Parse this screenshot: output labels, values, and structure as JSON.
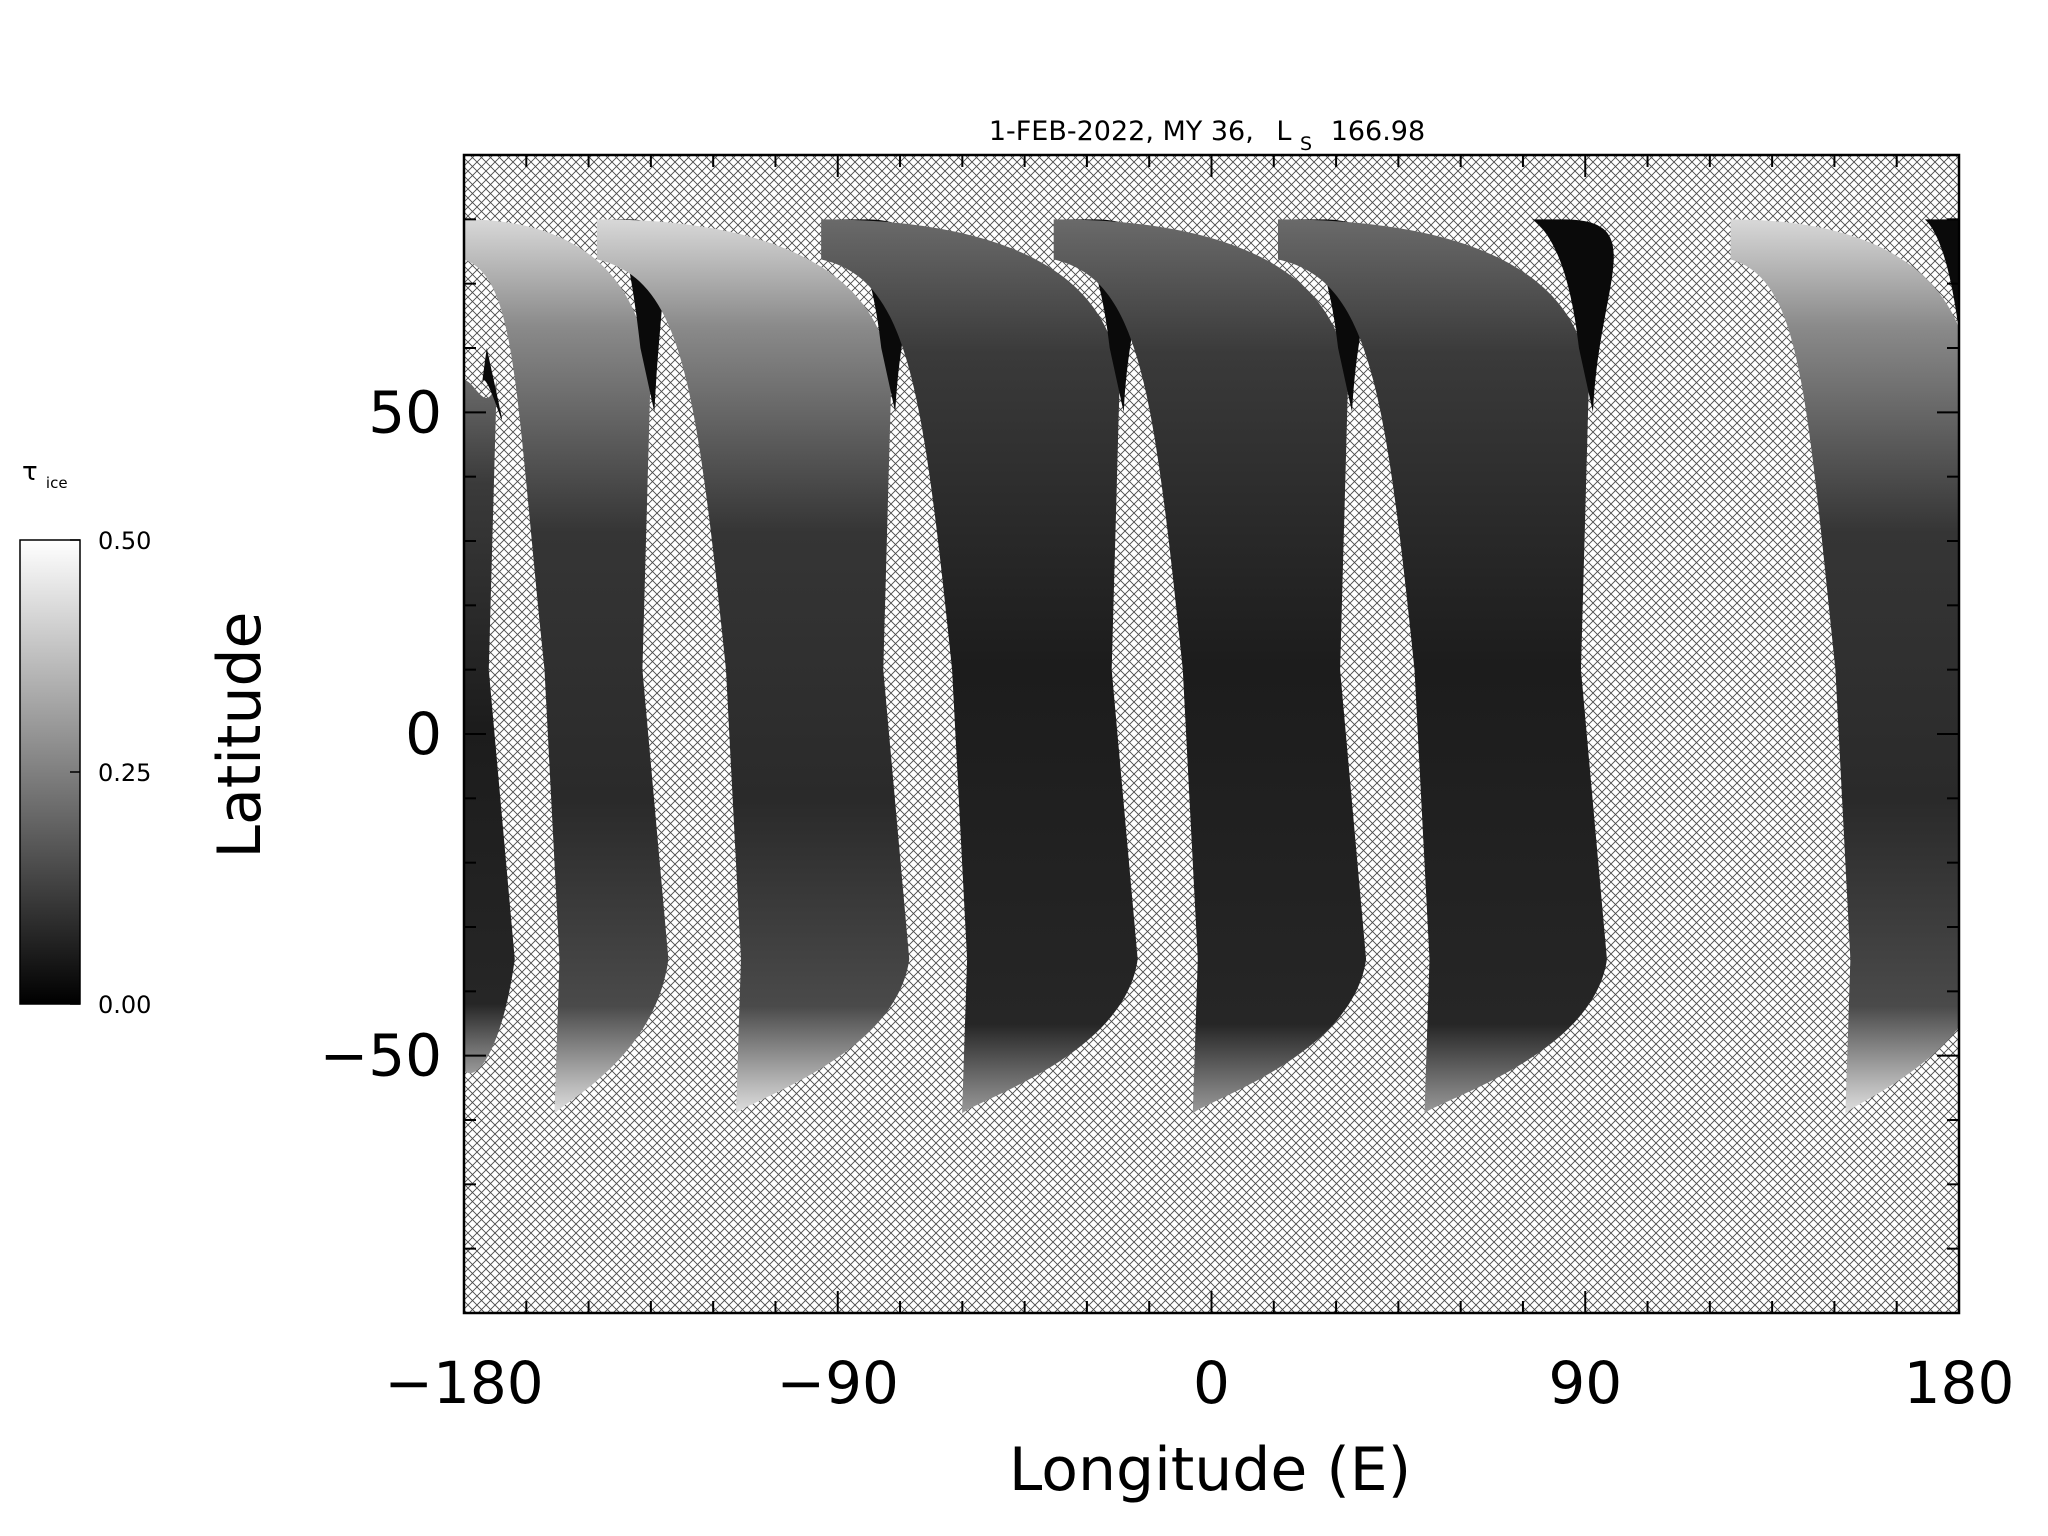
{
  "chart_data": {
    "type": "heatmap",
    "title": "1-FEB-2022, MY 36,",
    "title_ls_letter": "L",
    "title_ls_subscript": "S",
    "title_ls_value": "166.98",
    "xlabel": "Longitude (E)",
    "ylabel": "Latitude",
    "xlim": [
      -180,
      180
    ],
    "ylim": [
      -90,
      90
    ],
    "x_ticks": [
      "−180",
      "−90",
      "0",
      "90",
      "180"
    ],
    "x_tick_values": [
      -180,
      -90,
      0,
      90,
      180
    ],
    "y_ticks": [
      "−50",
      "0",
      "50"
    ],
    "y_tick_values": [
      -50,
      0,
      50
    ],
    "no_data_pattern": "crosshatch",
    "colorbar": {
      "label_symbol": "τ",
      "label_subscript": "ice",
      "range": [
        0.0,
        0.5
      ],
      "ticks": [
        "0.50",
        "0.25",
        "0.00"
      ],
      "tick_values": [
        0.5,
        0.25,
        0.0
      ],
      "colormap": "grayscale",
      "color_low": "#000000",
      "color_high": "#ffffff"
    },
    "swaths": [
      {
        "lon_start": -180,
        "lon_end": -175,
        "lat_min": -50,
        "lat_max": 55,
        "mean_tau": 0.05
      },
      {
        "lon_start": -180,
        "lon_end": -138,
        "lat_min": -59,
        "lat_max": 80,
        "mean_tau": 0.15
      },
      {
        "lon_start": -148,
        "lon_end": -80,
        "lat_min": -59,
        "lat_max": 80,
        "mean_tau": 0.13
      },
      {
        "lon_start": -94,
        "lon_end": -25,
        "lat_min": -59,
        "lat_max": 80,
        "mean_tau": 0.09
      },
      {
        "lon_start": -38,
        "lon_end": 30,
        "lat_min": -59,
        "lat_max": 80,
        "mean_tau": 0.07
      },
      {
        "lon_start": 16,
        "lon_end": 88,
        "lat_min": -59,
        "lat_max": 80,
        "mean_tau": 0.06
      },
      {
        "lon_start": 125,
        "lon_end": 180,
        "lat_min": -59,
        "lat_max": 80,
        "mean_tau": 0.16
      }
    ]
  }
}
